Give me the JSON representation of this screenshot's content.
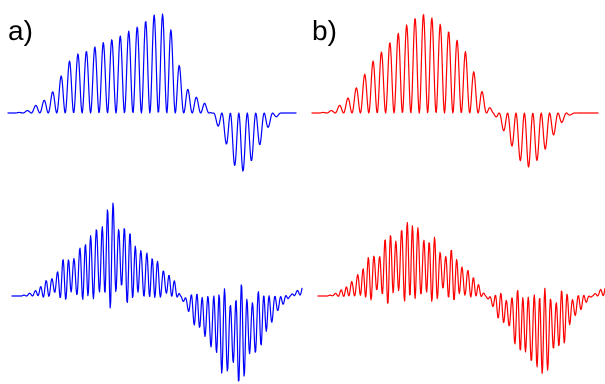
{
  "panels": [
    {
      "label": "a)",
      "color": "#0000ff"
    },
    {
      "label": "b)",
      "color": "#ff0000"
    }
  ],
  "chart_data": [
    {
      "type": "line",
      "panel": "a)",
      "series": [
        {
          "name": "",
          "color": "#0000ff",
          "values": [
            0,
            0,
            0.01,
            0.03,
            0.08,
            0.12,
            0.18,
            0.28,
            0.45,
            0.55,
            0.6,
            0.62,
            0.65,
            0.7,
            0.72,
            0.75,
            0.78,
            0.82,
            0.85,
            0.9,
            0.95,
            1.0,
            1.0,
            0.9,
            0.6,
            0.3,
            0.2,
            0.15,
            0.1,
            0.0,
            -0.15,
            -0.3,
            -0.5,
            -0.62,
            -0.55,
            -0.45,
            -0.3,
            -0.15,
            -0.05,
            0,
            0,
            0
          ]
        },
        {
          "name": "",
          "color": "#0000ff",
          "values": [
            0,
            0,
            0.02,
            0.06,
            0.12,
            0.2,
            0.3,
            0.38,
            0.45,
            0.5,
            0.62,
            0.75,
            0.85,
            0.92,
            0.8,
            0.6,
            0.55,
            0.45,
            0.4,
            0.3,
            0.25,
            0.1,
            -0.1,
            -0.25,
            -0.35,
            -0.5,
            -0.6,
            -0.8,
            -0.82,
            -0.85,
            -0.75,
            -0.62,
            -0.45,
            -0.3,
            -0.15,
            -0.05,
            0.05,
            0.1
          ]
        }
      ]
    },
    {
      "type": "line",
      "panel": "b)",
      "series": [
        {
          "name": "",
          "color": "#ff0000",
          "values": [
            0,
            0,
            0.01,
            0.03,
            0.08,
            0.14,
            0.22,
            0.32,
            0.45,
            0.55,
            0.62,
            0.7,
            0.78,
            0.85,
            0.92,
            0.97,
            1.0,
            0.97,
            0.92,
            0.86,
            0.8,
            0.72,
            0.62,
            0.45,
            0.28,
            0.12,
            0.0,
            -0.12,
            -0.25,
            -0.38,
            -0.5,
            -0.55,
            -0.5,
            -0.42,
            -0.3,
            -0.18,
            -0.08,
            -0.02,
            0,
            0,
            0,
            0
          ]
        },
        {
          "name": "",
          "color": "#ff0000",
          "values": [
            0,
            0,
            0.02,
            0.06,
            0.12,
            0.22,
            0.32,
            0.42,
            0.5,
            0.58,
            0.66,
            0.72,
            0.76,
            0.7,
            0.6,
            0.55,
            0.5,
            0.45,
            0.38,
            0.3,
            0.2,
            0.08,
            -0.05,
            -0.18,
            -0.3,
            -0.42,
            -0.55,
            -0.65,
            -0.75,
            -0.8,
            -0.7,
            -0.55,
            -0.4,
            -0.25,
            -0.12,
            -0.03,
            0.05,
            0.1
          ]
        }
      ]
    }
  ]
}
